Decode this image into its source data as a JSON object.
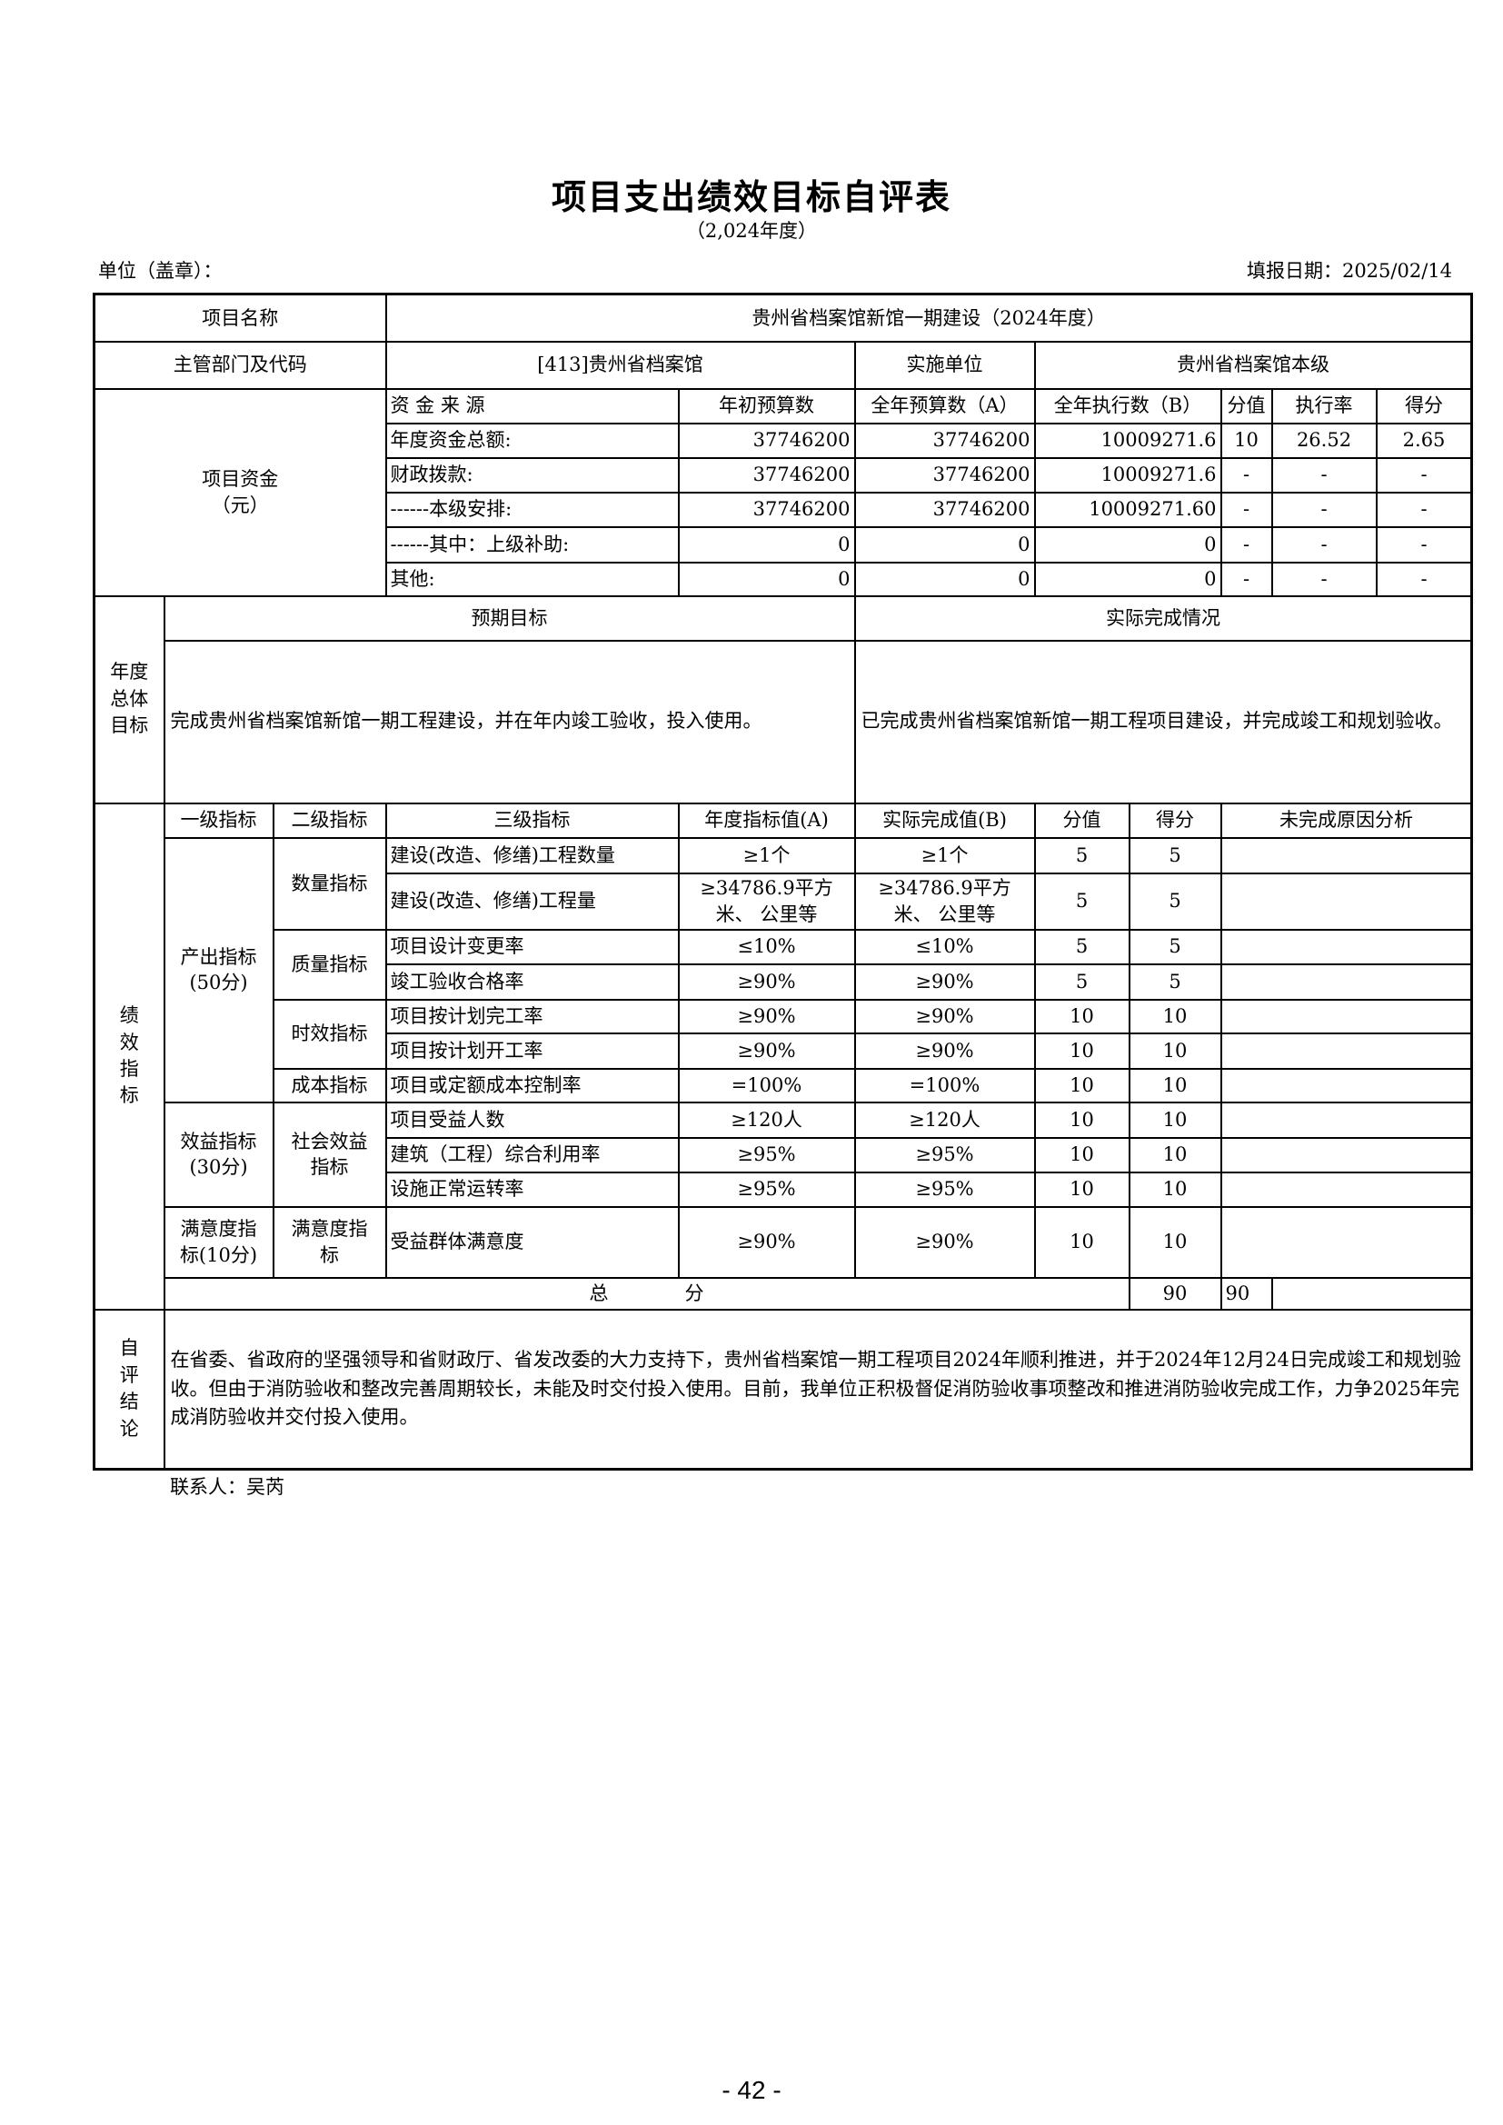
{
  "header": {
    "title": "项目支出绩效目标自评表",
    "subtitle": "（2,024年度）",
    "unit_label": "单位（盖章）：",
    "date_label": "填报日期：2025/02/14"
  },
  "info": {
    "project_name_label": "项目名称",
    "project_name": "贵州省档案馆新馆一期建设（2024年度）",
    "dept_label": "主管部门及代码",
    "dept": "[413]贵州省档案馆",
    "impl_label": "实施单位",
    "impl": "贵州省档案馆本级"
  },
  "funds": {
    "label": "项目资金\n（元）",
    "headers": [
      "资 金 来 源",
      "年初预算数",
      "全年预算数（A）",
      "全年执行数（B）",
      "分值",
      "执行率",
      "得分"
    ],
    "rows": [
      [
        "年度资金总额:",
        "37746200",
        "37746200",
        "10009271.6",
        "10",
        "26.52",
        "2.65"
      ],
      [
        "财政拨款:",
        "37746200",
        "37746200",
        "10009271.6",
        "-",
        "-",
        "-"
      ],
      [
        "------本级安排:",
        "37746200",
        "37746200",
        "10009271.60",
        "-",
        "-",
        "-"
      ],
      [
        "------其中：上级补助:",
        "0",
        "0",
        "0",
        "-",
        "-",
        "-"
      ],
      [
        "其他:",
        "0",
        "0",
        "0",
        "-",
        "-",
        "-"
      ]
    ]
  },
  "goals": {
    "label": "年度\n总体\n目标",
    "expected_label": "预期目标",
    "actual_label": "实际完成情况",
    "expected": "完成贵州省档案馆新馆一期工程建设，并在年内竣工验收，投入使用。",
    "actual": "已完成贵州省档案馆新馆一期工程项目建设，并完成竣工和规划验收。"
  },
  "metrics": {
    "label": "绩\n效\n指\n标",
    "headers": [
      "一级指标",
      "二级指标",
      "三级指标",
      "年度指标值(A)",
      "实际完成值(B)",
      "分值",
      "得分",
      "未完成原因分析"
    ],
    "level1": [
      "产出指标\n(50分)",
      "效益指标\n(30分)",
      "满意度指\n标(10分)"
    ],
    "level2": [
      "数量指标",
      "质量指标",
      "时效指标",
      "成本指标",
      "社会效益\n指标",
      "满意度指\n标"
    ],
    "rows": [
      [
        "建设(改造、修缮)工程数量",
        "≥1个",
        "≥1个",
        "5",
        "5",
        ""
      ],
      [
        "建设(改造、修缮)工程量",
        "≥34786.9平方米、 公里等",
        "≥34786.9平方米、 公里等",
        "5",
        "5",
        ""
      ],
      [
        "项目设计变更率",
        "≤10%",
        "≤10%",
        "5",
        "5",
        ""
      ],
      [
        "竣工验收合格率",
        "≥90%",
        "≥90%",
        "5",
        "5",
        ""
      ],
      [
        "项目按计划完工率",
        "≥90%",
        "≥90%",
        "10",
        "10",
        ""
      ],
      [
        "项目按计划开工率",
        "≥90%",
        "≥90%",
        "10",
        "10",
        ""
      ],
      [
        "项目或定额成本控制率",
        "=100%",
        "=100%",
        "10",
        "10",
        ""
      ],
      [
        "项目受益人数",
        "≥120人",
        "≥120人",
        "10",
        "10",
        ""
      ],
      [
        "建筑（工程）综合利用率",
        "≥95%",
        "≥95%",
        "10",
        "10",
        ""
      ],
      [
        "设施正常运转率",
        "≥95%",
        "≥95%",
        "10",
        "10",
        ""
      ],
      [
        "受益群体满意度",
        "≥90%",
        "≥90%",
        "10",
        "10",
        ""
      ]
    ],
    "total_label": "总　　　　分",
    "total_value": "90",
    "total_score": "90"
  },
  "conclusion": {
    "label": "自\n评\n结\n论",
    "text": "在省委、省政府的坚强领导和省财政厅、省发改委的大力支持下，贵州省档案馆一期工程项目2024年顺利推进，并于2024年12月24日完成竣工和规划验收。但由于消防验收和整改完善周期较长，未能及时交付投入使用。目前，我单位正积极督促消防验收事项整改和推进消防验收完成工作，力争2025年完成消防验收并交付投入使用。"
  },
  "footer": {
    "contact": "联系人：吴芮",
    "page": "- 42 -"
  }
}
